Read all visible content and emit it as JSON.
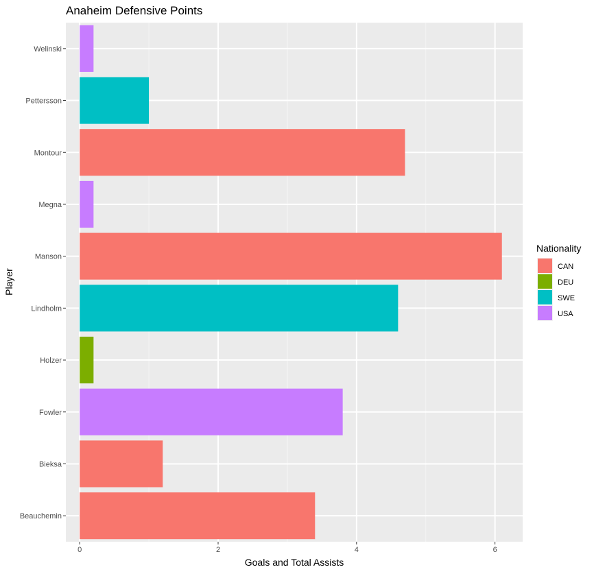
{
  "chart_data": {
    "type": "bar",
    "orientation": "horizontal",
    "title": "Anaheim Defensive Points",
    "xlabel": "Goals and Total Assists",
    "ylabel": "Player",
    "xlim": [
      -0.2,
      6.4
    ],
    "xticks": [
      0,
      2,
      4,
      6
    ],
    "grid": true,
    "legend_position": "right",
    "legend": {
      "title": "Nationality",
      "entries": [
        {
          "label": "CAN",
          "color": "#F8766D"
        },
        {
          "label": "DEU",
          "color": "#7CAE00"
        },
        {
          "label": "SWE",
          "color": "#00BFC4"
        },
        {
          "label": "USA",
          "color": "#C77CFF"
        }
      ]
    },
    "categories": [
      "Beauchemin",
      "Bieksa",
      "Fowler",
      "Holzer",
      "Lindholm",
      "Manson",
      "Megna",
      "Montour",
      "Pettersson",
      "Welinski"
    ],
    "values": [
      3.4,
      1.2,
      3.8,
      0.2,
      4.6,
      6.1,
      0.2,
      4.7,
      1.0,
      0.2
    ],
    "groups": [
      "CAN",
      "CAN",
      "USA",
      "DEU",
      "SWE",
      "CAN",
      "USA",
      "CAN",
      "SWE",
      "USA"
    ]
  }
}
